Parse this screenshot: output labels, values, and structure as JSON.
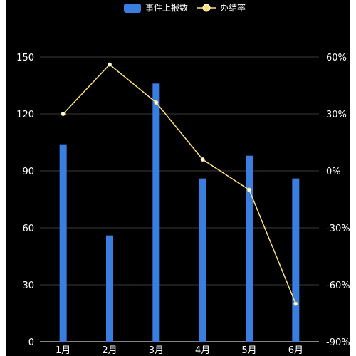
{
  "chart_data": {
    "type": "bar",
    "categories": [
      "1月",
      "2月",
      "3月",
      "4月",
      "5月",
      "6月"
    ],
    "series": [
      {
        "name": "事件上报数",
        "type": "bar",
        "axis": "left",
        "color": "#3a7ee0",
        "values": [
          104,
          56,
          136,
          86,
          98,
          86
        ]
      },
      {
        "name": "办结率",
        "type": "line",
        "axis": "right",
        "color": "#fde07a",
        "values": [
          30,
          56,
          36,
          6,
          -10,
          -70
        ]
      }
    ],
    "y_left": {
      "min": 0,
      "max": 150,
      "ticks": [
        "0",
        "30",
        "60",
        "90",
        "120",
        "150"
      ]
    },
    "y_right": {
      "min": -90,
      "max": 60,
      "ticks": [
        "-90%",
        "-60%",
        "-30%",
        "0%",
        "30%",
        "60%"
      ]
    },
    "grid": true,
    "legend_position": "top-center",
    "title": "",
    "xlabel": "",
    "ylabel": ""
  }
}
